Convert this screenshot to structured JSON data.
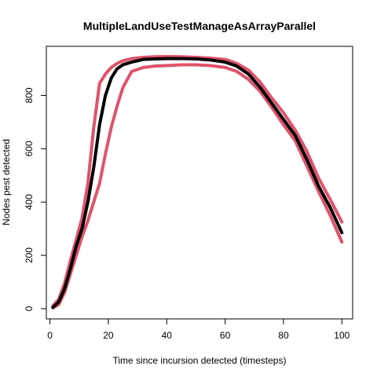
{
  "chart_data": {
    "type": "line",
    "title": "MultipleLandUseTestManageAsArrayParallel",
    "xlabel": "Time since incursion detected (timesteps)",
    "ylabel": "Nodes pest detected",
    "xlim": [
      1,
      100
    ],
    "ylim": [
      0,
      950
    ],
    "x_ticks": [
      0,
      20,
      40,
      60,
      80,
      100
    ],
    "y_ticks": [
      0,
      200,
      400,
      600,
      800
    ],
    "grid": false,
    "x": [
      1,
      3,
      5,
      7,
      9,
      11,
      13,
      15,
      17,
      19,
      21,
      23,
      25,
      28,
      32,
      36,
      40,
      45,
      50,
      55,
      60,
      64,
      68,
      72,
      76,
      80,
      84,
      88,
      92,
      96,
      100
    ],
    "series": [
      {
        "color": "#000000",
        "values": [
          5,
          25,
          75,
          150,
          235,
          300,
          400,
          530,
          690,
          800,
          865,
          900,
          915,
          925,
          935,
          937,
          938,
          938,
          937,
          933,
          925,
          910,
          880,
          830,
          770,
          710,
          650,
          560,
          460,
          380,
          285
        ]
      },
      {
        "color": "#DF536B",
        "values": [
          10,
          35,
          95,
          180,
          260,
          340,
          470,
          680,
          845,
          880,
          905,
          920,
          930,
          938,
          943,
          945,
          946,
          945,
          943,
          940,
          935,
          920,
          895,
          850,
          790,
          735,
          670,
          590,
          490,
          410,
          325
        ]
      },
      {
        "color": "#DF536B",
        "values": [
          3,
          15,
          60,
          130,
          200,
          270,
          330,
          400,
          470,
          580,
          680,
          760,
          830,
          890,
          905,
          910,
          912,
          915,
          915,
          912,
          905,
          890,
          860,
          815,
          755,
          690,
          630,
          535,
          440,
          350,
          250
        ]
      }
    ]
  }
}
